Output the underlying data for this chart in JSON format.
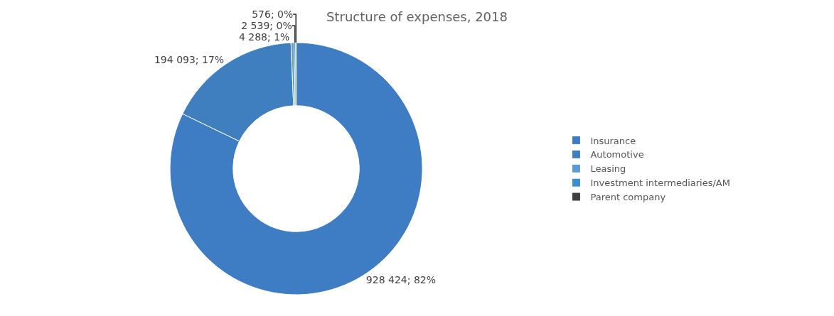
{
  "chart_data": {
    "type": "donut",
    "title": "Structure of expenses, 2018",
    "categories": [
      "Insurance",
      "Automotive",
      "Leasing",
      "Investment intermediaries/AM",
      "Parent company"
    ],
    "values": [
      928424,
      194093,
      4288,
      2539,
      576
    ],
    "value_labels": [
      "928 424; 82%",
      "194 093; 17%",
      "4 288; 1%",
      "2 539; 0%",
      "576; 0%"
    ],
    "colors": [
      "#3e7cc4",
      "#3f7fbf",
      "#5b9bd5",
      "#3a8fd0",
      "#404040"
    ],
    "legend": "right"
  }
}
